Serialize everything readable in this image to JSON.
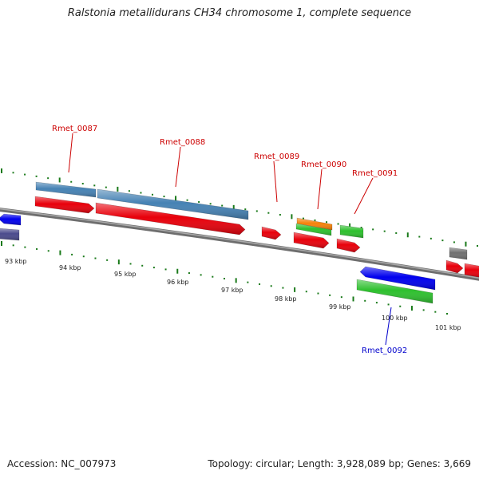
{
  "title": "Ralstonia metallidurans CH34 chromosome 1, complete sequence",
  "footer": {
    "accession": "Accession: NC_007973",
    "summary": "Topology: circular; Length: 3,928,089 bp; Genes: 3,669"
  },
  "colors": {
    "red": "#e8000b",
    "steelblue": "#4682b4",
    "blue": "#0000ee",
    "green": "#2ec02e",
    "orange": "#f5820a",
    "gray": "#707070",
    "navy": "#4a4a8c",
    "backbone": "#808080",
    "tick": "#1a7a1a",
    "label_red": "#cc0000",
    "label_blue": "#0000cc"
  },
  "scale_labels": [
    "93 kbp",
    "94 kbp",
    "95 kbp",
    "96 kbp",
    "97 kbp",
    "98 kbp",
    "99 kbp",
    "100 kbp",
    "101 kbp"
  ],
  "gene_labels": [
    {
      "text": "Rmet_0087",
      "color": "label_red"
    },
    {
      "text": "Rmet_0088",
      "color": "label_red"
    },
    {
      "text": "Rmet_0089",
      "color": "label_red"
    },
    {
      "text": "Rmet_0090",
      "color": "label_red"
    },
    {
      "text": "Rmet_0091",
      "color": "label_red"
    },
    {
      "text": "Rmet_0092",
      "color": "label_blue"
    }
  ]
}
